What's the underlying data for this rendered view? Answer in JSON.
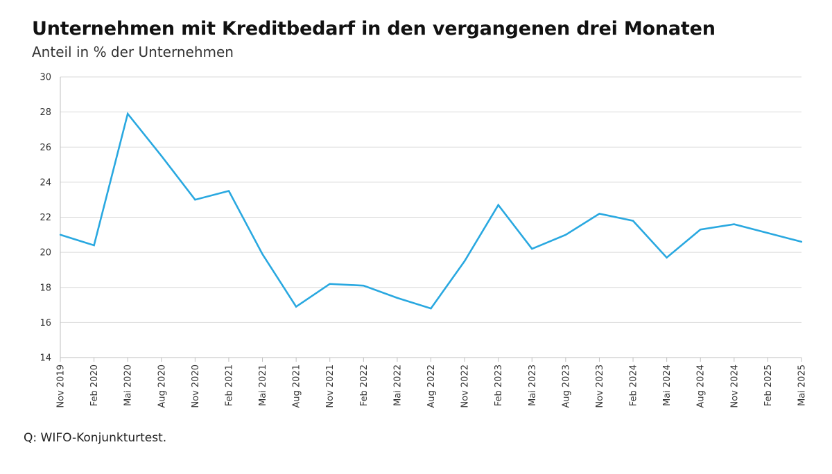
{
  "chart_data": {
    "type": "line",
    "title": "Unternehmen mit Kreditbedarf in den vergangenen drei Monaten",
    "subtitle": "Anteil in % der Unternehmen",
    "source": "Q: WIFO-Konjunkturtest.",
    "xlabel": "",
    "ylabel": "",
    "ylim": [
      14,
      30
    ],
    "yticks": [
      14,
      16,
      18,
      20,
      22,
      24,
      26,
      28,
      30
    ],
    "grid": true,
    "line_color": "#29a8e0",
    "categories": [
      "Nov 2019",
      "Feb 2020",
      "Mai 2020",
      "Aug 2020",
      "Nov 2020",
      "Feb 2021",
      "Mai 2021",
      "Aug 2021",
      "Nov 2021",
      "Feb 2022",
      "Mai 2022",
      "Aug 2022",
      "Nov 2022",
      "Feb 2023",
      "Mai 2023",
      "Aug 2023",
      "Nov 2023",
      "Feb 2024",
      "Mai 2024",
      "Aug 2024",
      "Nov 2024",
      "Feb 2025",
      "Mai 2025"
    ],
    "values": [
      21.0,
      20.4,
      27.9,
      25.5,
      23.0,
      23.5,
      19.9,
      16.9,
      18.2,
      18.1,
      17.4,
      16.8,
      19.5,
      22.7,
      20.2,
      21.0,
      22.2,
      21.8,
      19.7,
      21.3,
      21.6,
      21.1,
      20.6
    ]
  }
}
